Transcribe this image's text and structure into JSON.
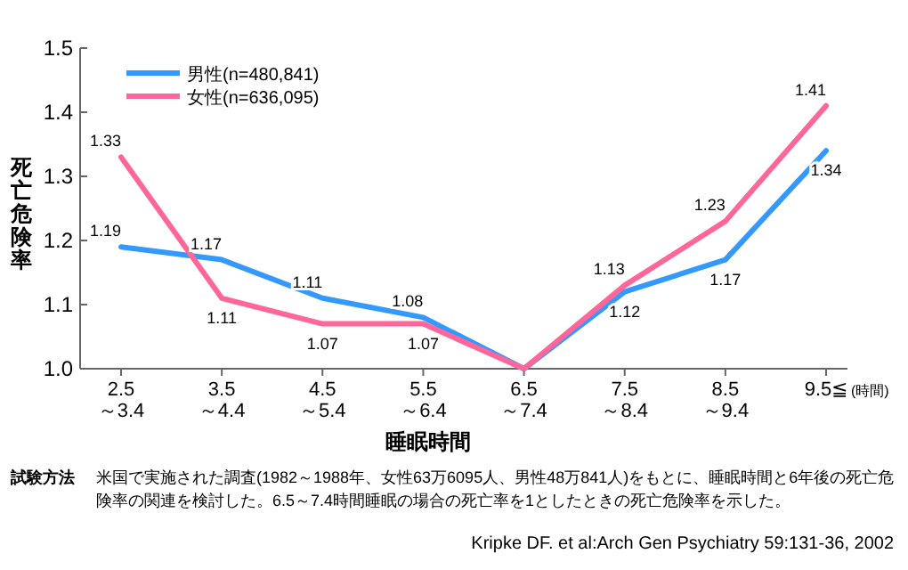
{
  "chart_data": {
    "type": "line",
    "xlabel": "睡眠時間",
    "ylabel": "死亡危険率",
    "categories": [
      "2.5～3.4",
      "3.5～4.4",
      "4.5～5.4",
      "5.5～6.4",
      "6.5～7.4",
      "7.5～8.4",
      "8.5～9.4",
      "9.5≦"
    ],
    "series": [
      {
        "name": "男性(n=480,841)",
        "color": "#3399ff",
        "values": [
          1.19,
          1.17,
          1.11,
          1.08,
          1.0,
          1.12,
          1.17,
          1.34
        ],
        "value_labels": [
          "1.19",
          "1.17",
          "1.11",
          "1.08",
          null,
          "1.12",
          "1.17",
          "1.34"
        ]
      },
      {
        "name": "女性(n=636,095)",
        "color": "#ff6699",
        "values": [
          1.33,
          1.11,
          1.07,
          1.07,
          1.0,
          1.13,
          1.23,
          1.41
        ],
        "value_labels": [
          "1.33",
          "1.11",
          "1.07",
          "1.07",
          null,
          "1.13",
          "1.23",
          "1.41"
        ]
      }
    ],
    "ylim": [
      1.0,
      1.5
    ],
    "yticks": [
      "1.0",
      "1.1",
      "1.2",
      "1.3",
      "1.4",
      "1.5"
    ],
    "grid": false,
    "legend": "top left",
    "annotations": [
      "(時間)",
      "試験方法",
      "米国で実施された調査(1982～1988年、女性63万6095人、男性48万841人)をもとに、睡眠時間と6年後の死亡危険率の関連を検討した。6.5～7.4時間睡眠の場合の死亡率を1としたときの死亡危険率を示した。",
      "Kripke DF. et al:Arch Gen Psychiatry 59:131-36, 2002"
    ]
  }
}
